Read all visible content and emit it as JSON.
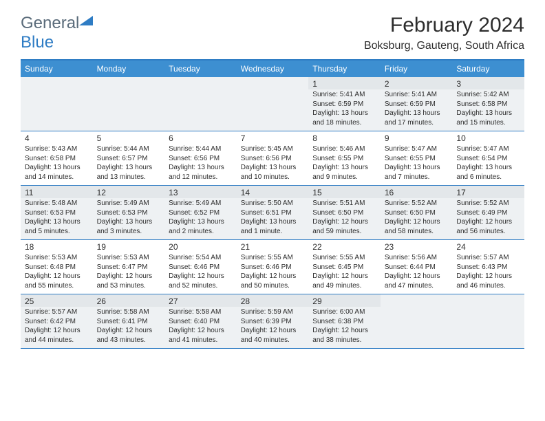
{
  "logo": {
    "word1": "General",
    "word2": "Blue"
  },
  "title": "February 2024",
  "location": "Boksburg, Gauteng, South Africa",
  "dayNames": [
    "Sunday",
    "Monday",
    "Tuesday",
    "Wednesday",
    "Thursday",
    "Friday",
    "Saturday"
  ],
  "colors": {
    "header_bg": "#3d8fd1",
    "border": "#2e7cc4",
    "shade": "#eef1f3",
    "shade_num": "#e3e7ea",
    "text": "#2c2c2c"
  },
  "weeks": [
    [
      {
        "day": "",
        "sunrise": "",
        "sunset": "",
        "daylight": ""
      },
      {
        "day": "",
        "sunrise": "",
        "sunset": "",
        "daylight": ""
      },
      {
        "day": "",
        "sunrise": "",
        "sunset": "",
        "daylight": ""
      },
      {
        "day": "",
        "sunrise": "",
        "sunset": "",
        "daylight": ""
      },
      {
        "day": "1",
        "sunrise": "Sunrise: 5:41 AM",
        "sunset": "Sunset: 6:59 PM",
        "daylight": "Daylight: 13 hours and 18 minutes."
      },
      {
        "day": "2",
        "sunrise": "Sunrise: 5:41 AM",
        "sunset": "Sunset: 6:59 PM",
        "daylight": "Daylight: 13 hours and 17 minutes."
      },
      {
        "day": "3",
        "sunrise": "Sunrise: 5:42 AM",
        "sunset": "Sunset: 6:58 PM",
        "daylight": "Daylight: 13 hours and 15 minutes."
      }
    ],
    [
      {
        "day": "4",
        "sunrise": "Sunrise: 5:43 AM",
        "sunset": "Sunset: 6:58 PM",
        "daylight": "Daylight: 13 hours and 14 minutes."
      },
      {
        "day": "5",
        "sunrise": "Sunrise: 5:44 AM",
        "sunset": "Sunset: 6:57 PM",
        "daylight": "Daylight: 13 hours and 13 minutes."
      },
      {
        "day": "6",
        "sunrise": "Sunrise: 5:44 AM",
        "sunset": "Sunset: 6:56 PM",
        "daylight": "Daylight: 13 hours and 12 minutes."
      },
      {
        "day": "7",
        "sunrise": "Sunrise: 5:45 AM",
        "sunset": "Sunset: 6:56 PM",
        "daylight": "Daylight: 13 hours and 10 minutes."
      },
      {
        "day": "8",
        "sunrise": "Sunrise: 5:46 AM",
        "sunset": "Sunset: 6:55 PM",
        "daylight": "Daylight: 13 hours and 9 minutes."
      },
      {
        "day": "9",
        "sunrise": "Sunrise: 5:47 AM",
        "sunset": "Sunset: 6:55 PM",
        "daylight": "Daylight: 13 hours and 7 minutes."
      },
      {
        "day": "10",
        "sunrise": "Sunrise: 5:47 AM",
        "sunset": "Sunset: 6:54 PM",
        "daylight": "Daylight: 13 hours and 6 minutes."
      }
    ],
    [
      {
        "day": "11",
        "sunrise": "Sunrise: 5:48 AM",
        "sunset": "Sunset: 6:53 PM",
        "daylight": "Daylight: 13 hours and 5 minutes."
      },
      {
        "day": "12",
        "sunrise": "Sunrise: 5:49 AM",
        "sunset": "Sunset: 6:53 PM",
        "daylight": "Daylight: 13 hours and 3 minutes."
      },
      {
        "day": "13",
        "sunrise": "Sunrise: 5:49 AM",
        "sunset": "Sunset: 6:52 PM",
        "daylight": "Daylight: 13 hours and 2 minutes."
      },
      {
        "day": "14",
        "sunrise": "Sunrise: 5:50 AM",
        "sunset": "Sunset: 6:51 PM",
        "daylight": "Daylight: 13 hours and 1 minute."
      },
      {
        "day": "15",
        "sunrise": "Sunrise: 5:51 AM",
        "sunset": "Sunset: 6:50 PM",
        "daylight": "Daylight: 12 hours and 59 minutes."
      },
      {
        "day": "16",
        "sunrise": "Sunrise: 5:52 AM",
        "sunset": "Sunset: 6:50 PM",
        "daylight": "Daylight: 12 hours and 58 minutes."
      },
      {
        "day": "17",
        "sunrise": "Sunrise: 5:52 AM",
        "sunset": "Sunset: 6:49 PM",
        "daylight": "Daylight: 12 hours and 56 minutes."
      }
    ],
    [
      {
        "day": "18",
        "sunrise": "Sunrise: 5:53 AM",
        "sunset": "Sunset: 6:48 PM",
        "daylight": "Daylight: 12 hours and 55 minutes."
      },
      {
        "day": "19",
        "sunrise": "Sunrise: 5:53 AM",
        "sunset": "Sunset: 6:47 PM",
        "daylight": "Daylight: 12 hours and 53 minutes."
      },
      {
        "day": "20",
        "sunrise": "Sunrise: 5:54 AM",
        "sunset": "Sunset: 6:46 PM",
        "daylight": "Daylight: 12 hours and 52 minutes."
      },
      {
        "day": "21",
        "sunrise": "Sunrise: 5:55 AM",
        "sunset": "Sunset: 6:46 PM",
        "daylight": "Daylight: 12 hours and 50 minutes."
      },
      {
        "day": "22",
        "sunrise": "Sunrise: 5:55 AM",
        "sunset": "Sunset: 6:45 PM",
        "daylight": "Daylight: 12 hours and 49 minutes."
      },
      {
        "day": "23",
        "sunrise": "Sunrise: 5:56 AM",
        "sunset": "Sunset: 6:44 PM",
        "daylight": "Daylight: 12 hours and 47 minutes."
      },
      {
        "day": "24",
        "sunrise": "Sunrise: 5:57 AM",
        "sunset": "Sunset: 6:43 PM",
        "daylight": "Daylight: 12 hours and 46 minutes."
      }
    ],
    [
      {
        "day": "25",
        "sunrise": "Sunrise: 5:57 AM",
        "sunset": "Sunset: 6:42 PM",
        "daylight": "Daylight: 12 hours and 44 minutes."
      },
      {
        "day": "26",
        "sunrise": "Sunrise: 5:58 AM",
        "sunset": "Sunset: 6:41 PM",
        "daylight": "Daylight: 12 hours and 43 minutes."
      },
      {
        "day": "27",
        "sunrise": "Sunrise: 5:58 AM",
        "sunset": "Sunset: 6:40 PM",
        "daylight": "Daylight: 12 hours and 41 minutes."
      },
      {
        "day": "28",
        "sunrise": "Sunrise: 5:59 AM",
        "sunset": "Sunset: 6:39 PM",
        "daylight": "Daylight: 12 hours and 40 minutes."
      },
      {
        "day": "29",
        "sunrise": "Sunrise: 6:00 AM",
        "sunset": "Sunset: 6:38 PM",
        "daylight": "Daylight: 12 hours and 38 minutes."
      },
      {
        "day": "",
        "sunrise": "",
        "sunset": "",
        "daylight": ""
      },
      {
        "day": "",
        "sunrise": "",
        "sunset": "",
        "daylight": ""
      }
    ]
  ]
}
